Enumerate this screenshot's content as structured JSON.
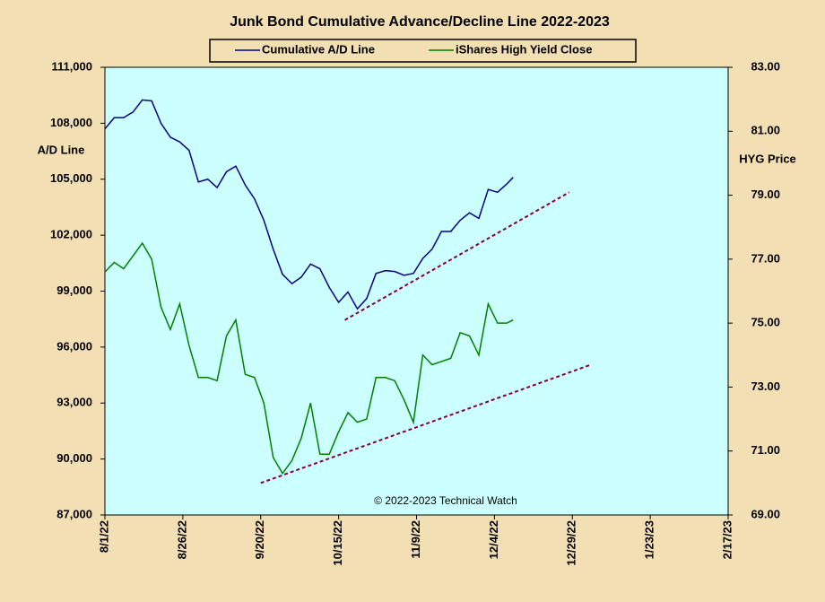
{
  "chart_data": {
    "type": "line",
    "title": "Junk Bond Cumulative  Advance/Decline Line 2022-2023",
    "ylabel": "A/D Line",
    "y2label": "HYG Price",
    "annotation": "© 2022-2023  Technical Watch",
    "x": [
      "2022-08-01",
      "2022-08-04",
      "2022-08-07",
      "2022-08-10",
      "2022-08-13",
      "2022-08-16",
      "2022-08-19",
      "2022-08-22",
      "2022-08-25",
      "2022-08-28",
      "2022-08-31",
      "2022-09-03",
      "2022-09-06",
      "2022-09-09",
      "2022-09-12",
      "2022-09-15",
      "2022-09-18",
      "2022-09-21",
      "2022-09-24",
      "2022-09-27",
      "2022-09-30",
      "2022-10-03",
      "2022-10-06",
      "2022-10-09",
      "2022-10-12",
      "2022-10-15",
      "2022-10-18",
      "2022-10-21",
      "2022-10-24",
      "2022-10-27",
      "2022-10-30",
      "2022-11-02",
      "2022-11-05",
      "2022-11-08",
      "2022-11-11",
      "2022-11-14",
      "2022-11-17",
      "2022-11-20",
      "2022-11-23",
      "2022-11-26",
      "2022-11-29",
      "2022-12-02",
      "2022-12-05",
      "2022-12-08",
      "2022-12-10"
    ],
    "series": [
      {
        "name": "Cumulative A/D Line",
        "color": "#000080",
        "axis": "y",
        "values": [
          107700,
          108300,
          108300,
          108600,
          109250,
          109200,
          108000,
          107250,
          107000,
          106550,
          104850,
          105000,
          104550,
          105400,
          105700,
          104700,
          103950,
          102800,
          101250,
          99900,
          99400,
          99750,
          100450,
          100200,
          99200,
          98400,
          98950,
          98050,
          98600,
          99950,
          100100,
          100050,
          99850,
          99950,
          100750,
          101250,
          102200,
          102200,
          102800,
          103200,
          102900,
          104450,
          104300,
          104750,
          105100
        ]
      },
      {
        "name": "iShares High Yield Close",
        "color": "#008000",
        "axis": "y2",
        "values": [
          76.6,
          76.9,
          76.7,
          77.1,
          77.5,
          77.0,
          75.5,
          74.8,
          75.6,
          74.3,
          73.3,
          73.3,
          73.2,
          74.6,
          75.1,
          73.4,
          73.3,
          72.5,
          70.8,
          70.3,
          70.7,
          71.4,
          72.5,
          70.9,
          70.9,
          71.6,
          72.2,
          71.9,
          72.0,
          73.3,
          73.3,
          73.2,
          72.6,
          71.9,
          74.0,
          73.7,
          73.8,
          73.9,
          74.7,
          74.6,
          74.0,
          75.6,
          75.0,
          75.0,
          75.1
        ]
      }
    ],
    "trend_lines": [
      {
        "color": "#800040",
        "axis": "y",
        "x": [
          "2022-10-17",
          "2022-12-28"
        ],
        "values": [
          97450,
          104300
        ]
      },
      {
        "color": "#800040",
        "axis": "y2",
        "x": [
          "2022-09-20",
          "2023-01-04"
        ],
        "values": [
          70.0,
          73.7
        ]
      }
    ],
    "xlim": [
      "2022-08-01",
      "2023-02-17"
    ],
    "xticks": [
      {
        "value": "2022-08-01",
        "label": "8/1/22"
      },
      {
        "value": "2022-08-26",
        "label": "8/26/22"
      },
      {
        "value": "2022-09-20",
        "label": "9/20/22"
      },
      {
        "value": "2022-10-15",
        "label": "10/15/22"
      },
      {
        "value": "2022-11-09",
        "label": "11/9/22"
      },
      {
        "value": "2022-12-04",
        "label": "12/4/22"
      },
      {
        "value": "2022-12-29",
        "label": "12/29/22"
      },
      {
        "value": "2023-01-23",
        "label": "1/23/23"
      },
      {
        "value": "2023-02-17",
        "label": "2/17/23"
      }
    ],
    "ylim": [
      87000,
      111000
    ],
    "yticks": [
      {
        "value": 87000,
        "label": "87,000"
      },
      {
        "value": 90000,
        "label": "90,000"
      },
      {
        "value": 93000,
        "label": "93,000"
      },
      {
        "value": 96000,
        "label": "96,000"
      },
      {
        "value": 99000,
        "label": "99,000"
      },
      {
        "value": 102000,
        "label": "102,000"
      },
      {
        "value": 105000,
        "label": "105,000"
      },
      {
        "value": 108000,
        "label": "108,000"
      },
      {
        "value": 111000,
        "label": "111,000"
      }
    ],
    "y2lim": [
      69,
      83
    ],
    "y2ticks": [
      {
        "value": 69,
        "label": "69.00"
      },
      {
        "value": 71,
        "label": "71.00"
      },
      {
        "value": 73,
        "label": "73.00"
      },
      {
        "value": 75,
        "label": "75.00"
      },
      {
        "value": 77,
        "label": "77.00"
      },
      {
        "value": 79,
        "label": "79.00"
      },
      {
        "value": 81,
        "label": "81.00"
      },
      {
        "value": 83,
        "label": "83.00"
      }
    ],
    "plot_background": "#ccffff"
  }
}
